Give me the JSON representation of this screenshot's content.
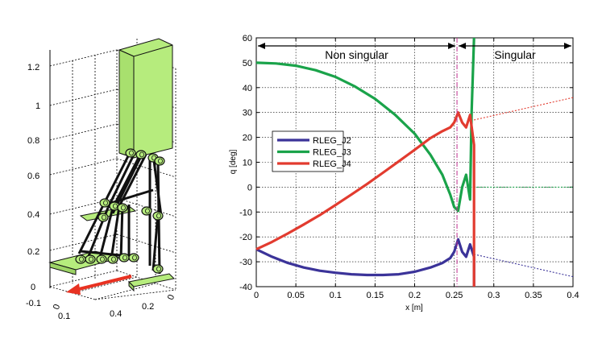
{
  "left_panel": {
    "z_ticks": [
      "0",
      "0.2",
      "0.4",
      "0.6",
      "0.8",
      "1",
      "1.2"
    ],
    "y_ticks": [
      "-0.1",
      "0",
      "0.1"
    ],
    "x_ticks": [
      "0.4",
      "0.2",
      "0"
    ],
    "colors": {
      "body": "#b6ec7d",
      "limb": "#111111",
      "arrow": "#e83222"
    }
  },
  "chart_data": {
    "type": "line",
    "xlabel": "x [m]",
    "ylabel": "q [deg]",
    "xlim": [
      0,
      0.4
    ],
    "ylim": [
      -40,
      60
    ],
    "x_ticks": [
      "0",
      "0.05",
      "0.1",
      "0.15",
      "0.2",
      "0.25",
      "0.3",
      "0.35",
      "0.4"
    ],
    "y_ticks": [
      "-40",
      "-30",
      "-20",
      "-10",
      "0",
      "10",
      "20",
      "30",
      "40",
      "50",
      "60"
    ],
    "grid": true,
    "legend_position": "center-left",
    "singular_boundary_x": 0.2535,
    "regions": [
      {
        "label": "Non singular",
        "x_range": [
          0,
          0.2535
        ]
      },
      {
        "label": "Singular",
        "x_range": [
          0.2535,
          0.4
        ]
      }
    ],
    "series": [
      {
        "name": "RLEG_J2",
        "color": "#3b3399",
        "x": [
          0,
          0.02,
          0.04,
          0.06,
          0.08,
          0.1,
          0.12,
          0.14,
          0.16,
          0.18,
          0.2,
          0.22,
          0.235,
          0.245,
          0.25,
          0.255,
          0.26,
          0.265,
          0.27,
          0.275,
          0.275
        ],
        "y": [
          -25,
          -28,
          -30.5,
          -32.3,
          -33.6,
          -34.4,
          -35,
          -35.3,
          -35.3,
          -35,
          -34,
          -32.3,
          -30.5,
          -28.5,
          -26,
          -21,
          -26,
          -28,
          -23,
          -28,
          -40
        ]
      },
      {
        "name": "RLEG_J3",
        "color": "#1aa34a",
        "x": [
          0,
          0.025,
          0.05,
          0.075,
          0.1,
          0.125,
          0.15,
          0.175,
          0.2,
          0.22,
          0.235,
          0.245,
          0.25,
          0.255,
          0.26,
          0.265,
          0.27,
          0.272,
          0.275
        ],
        "y": [
          50,
          49.7,
          48.8,
          47,
          44.3,
          40.4,
          35.5,
          29.2,
          21.5,
          13,
          5,
          -3,
          -8,
          -9.5,
          0,
          5,
          -5,
          30,
          60
        ]
      },
      {
        "name": "RLEG_J4",
        "color": "#e23b2f",
        "x": [
          0,
          0.02,
          0.04,
          0.06,
          0.08,
          0.1,
          0.12,
          0.14,
          0.16,
          0.18,
          0.2,
          0.22,
          0.235,
          0.245,
          0.25,
          0.255,
          0.26,
          0.265,
          0.27,
          0.275,
          0.275
        ],
        "y": [
          -25,
          -22,
          -18.6,
          -15,
          -11.3,
          -7.2,
          -3,
          1.3,
          5.8,
          10.4,
          15,
          19.7,
          22.5,
          24,
          26,
          30,
          26,
          24,
          29,
          17,
          -40
        ]
      }
    ],
    "extrapolations": [
      {
        "series": "RLEG_J4",
        "x": [
          0.275,
          0.4
        ],
        "y": [
          27,
          36
        ]
      },
      {
        "series": "RLEG_J3",
        "x": [
          0.275,
          0.4
        ],
        "y": [
          0,
          0
        ]
      },
      {
        "series": "RLEG_J2",
        "x": [
          0.275,
          0.4
        ],
        "y": [
          -27,
          -36
        ]
      }
    ]
  }
}
